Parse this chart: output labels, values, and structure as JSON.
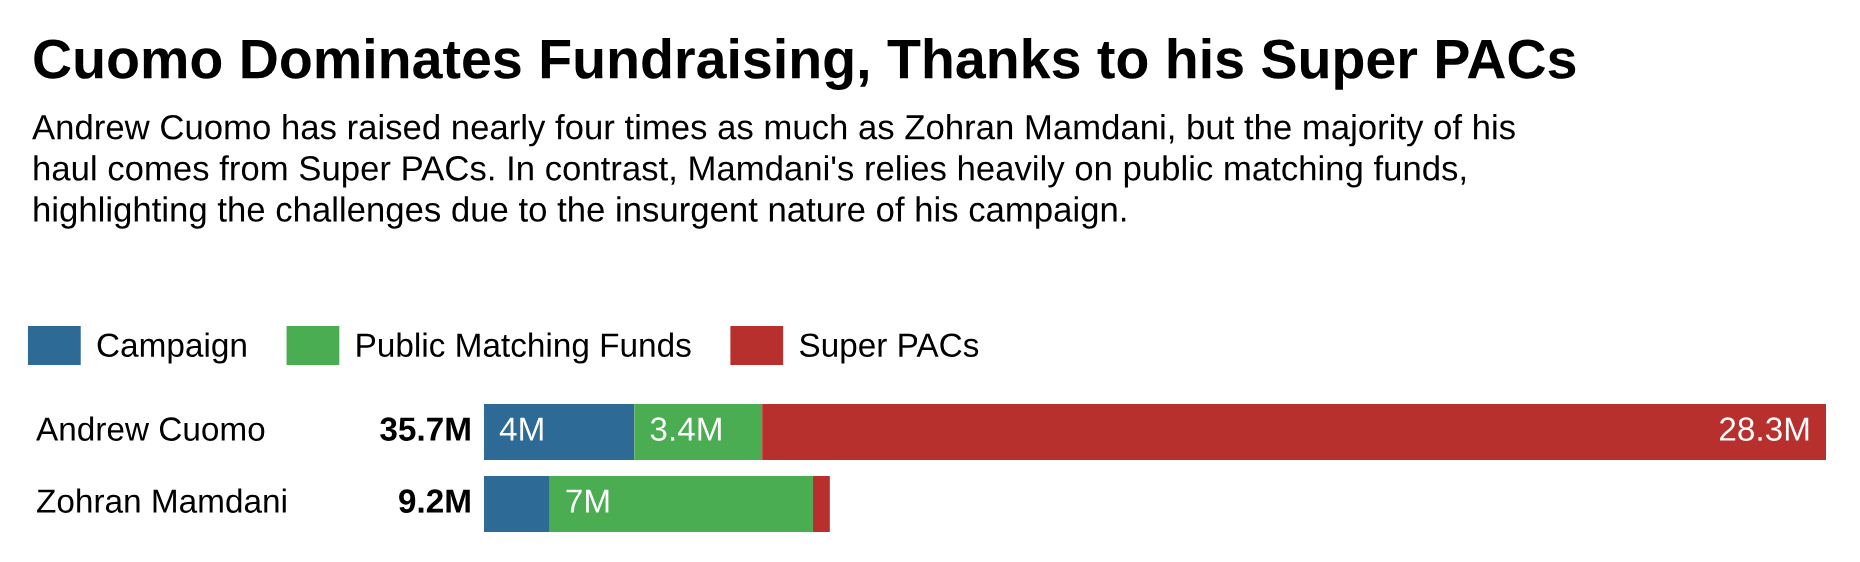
{
  "chart_data": {
    "type": "bar",
    "orientation": "horizontal",
    "stacked": true,
    "title": "Cuomo Dominates Fundraising, Thanks to his Super PACs",
    "subtitle": "Andrew Cuomo has raised nearly four times as much as Zohran Mamdani, but the majority of his\nhaul comes from Super PACs. In contrast, Mamdani's relies heavily on public matching funds,\nhighlighting the challenges due to the insurgent nature of his campaign.",
    "categories": [
      "Andrew Cuomo",
      "Zohran Mamdani"
    ],
    "series": [
      {
        "name": "Campaign",
        "color": "#2e6a96",
        "values": [
          4,
          1.75
        ],
        "value_labels": [
          "4M",
          null
        ]
      },
      {
        "name": "Public Matching Funds",
        "color": "#4aad52",
        "values": [
          3.4,
          7
        ],
        "value_labels": [
          "3.4M",
          "7M"
        ]
      },
      {
        "name": "Super PACs",
        "color": "#b8302d",
        "values": [
          28.3,
          0.45
        ],
        "value_labels": [
          "28.3M",
          null
        ]
      }
    ],
    "totals": [
      "35.7M",
      "9.2M"
    ],
    "xlim": [
      0,
      35.7
    ],
    "legend": "top left"
  }
}
